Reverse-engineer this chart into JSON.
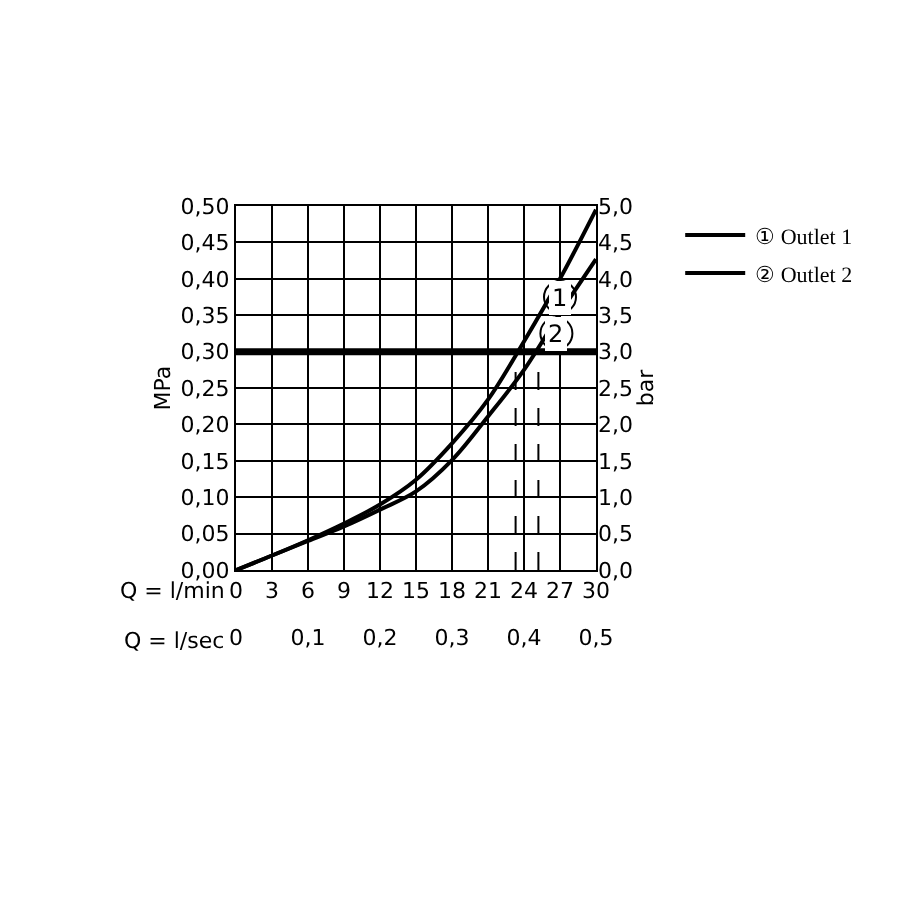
{
  "chart_data": {
    "type": "line",
    "xlabel": "Q = l/min",
    "x2label": "Q = l/sec",
    "ylabel": "MPa",
    "y2label": "bar",
    "x": [
      0,
      3,
      6,
      9,
      12,
      15,
      18,
      21,
      24,
      27,
      30
    ],
    "series": [
      {
        "name": "① Outlet 1",
        "color": "#000000",
        "values": [
          0,
          0.02,
          0.041,
          0.064,
          0.09,
          0.124,
          0.174,
          0.234,
          0.314,
          0.4,
          0.495
        ]
      },
      {
        "name": "② Outlet 2",
        "color": "#000000",
        "values": [
          0,
          0.02,
          0.04,
          0.06,
          0.083,
          0.108,
          0.151,
          0.211,
          0.275,
          0.353,
          0.427
        ]
      }
    ],
    "xlim": [
      0,
      30
    ],
    "xticks": [
      0,
      3,
      6,
      9,
      12,
      15,
      18,
      21,
      24,
      27,
      30
    ],
    "x2lim": [
      0,
      0.5
    ],
    "x2ticks": [
      0,
      {
        "value": 0.1,
        "label": "0,1"
      },
      {
        "value": 0.2,
        "label": "0,2"
      },
      {
        "value": 0.3,
        "label": "0,3"
      },
      {
        "value": 0.4,
        "label": "0,4"
      },
      {
        "value": 0.5,
        "label": "0,5"
      }
    ],
    "ylim": [
      0,
      0.5
    ],
    "yticks": [
      {
        "value": 0,
        "label": "0,00"
      },
      {
        "value": 0.05,
        "label": "0,05"
      },
      {
        "value": 0.1,
        "label": "0,10"
      },
      {
        "value": 0.15,
        "label": "0,15"
      },
      {
        "value": 0.2,
        "label": "0,20"
      },
      {
        "value": 0.25,
        "label": "0,25"
      },
      {
        "value": 0.3,
        "label": "0,30"
      },
      {
        "value": 0.35,
        "label": "0,35"
      },
      {
        "value": 0.4,
        "label": "0,40"
      },
      {
        "value": 0.45,
        "label": "0,45"
      },
      {
        "value": 0.5,
        "label": "0,50"
      }
    ],
    "y2lim": [
      0,
      5
    ],
    "y2ticks": [
      {
        "value": 0,
        "label": "0,0"
      },
      {
        "value": 0.5,
        "label": "0,5"
      },
      {
        "value": 1,
        "label": "1,0"
      },
      {
        "value": 1.5,
        "label": "1,5"
      },
      {
        "value": 2,
        "label": "2,0"
      },
      {
        "value": 2.5,
        "label": "2,5"
      },
      {
        "value": 3,
        "label": "3,0"
      },
      {
        "value": 3.5,
        "label": "3,5"
      },
      {
        "value": 4,
        "label": "4,0"
      },
      {
        "value": 4.5,
        "label": "4,5"
      },
      {
        "value": 5,
        "label": "5,0"
      }
    ],
    "ref_lines": [
      {
        "axis": "y",
        "value": 0.3,
        "color": "#000000",
        "line_style": "solid"
      },
      {
        "axis": "x",
        "value": 23.3,
        "color": "#000000",
        "line_style": "dashed"
      },
      {
        "axis": "x",
        "value": 25.2,
        "color": "#000000",
        "line_style": "dashed"
      }
    ],
    "annotations": [
      {
        "text": "1",
        "x": 27,
        "y": 0.375
      },
      {
        "text": "2",
        "x": 26.7,
        "y": 0.325
      }
    ],
    "grid": true,
    "legend": "top right",
    "marker": "none",
    "line_style": "solid"
  }
}
